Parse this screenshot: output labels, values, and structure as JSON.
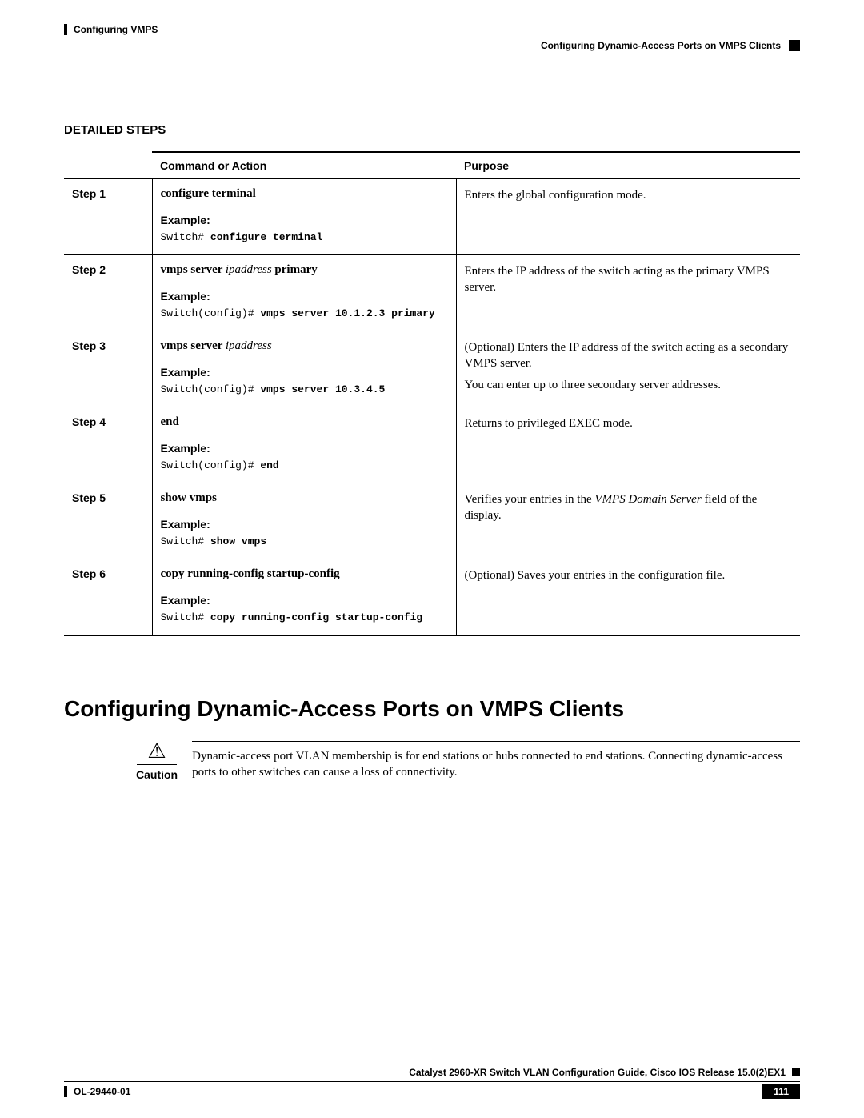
{
  "header": {
    "chapter_title": "Configuring VMPS",
    "sub_title": "Configuring Dynamic-Access Ports on VMPS Clients"
  },
  "section_heading": "DETAILED STEPS",
  "table": {
    "headers": {
      "cmd": "Command or Action",
      "purpose": "Purpose"
    },
    "example_label": "Example:",
    "steps": [
      {
        "step": "Step 1",
        "cmd_bold1": "configure terminal",
        "cmd_italic": "",
        "cmd_bold2": "",
        "code_prefix": "Switch# ",
        "code_bold": "configure terminal",
        "purpose_p1": "Enters the global configuration mode.",
        "purpose_p2": ""
      },
      {
        "step": "Step 2",
        "cmd_bold1": "vmps server ",
        "cmd_italic": "ipaddress",
        "cmd_bold2": " primary",
        "code_prefix": "Switch(config)# ",
        "code_bold": "vmps server 10.1.2.3 primary",
        "purpose_p1": "Enters the IP address of the switch acting as the primary VMPS server.",
        "purpose_p2": ""
      },
      {
        "step": "Step 3",
        "cmd_bold1": "vmps server ",
        "cmd_italic": "ipaddress",
        "cmd_bold2": "",
        "code_prefix": "Switch(config)# ",
        "code_bold": "vmps server 10.3.4.5",
        "purpose_p1": "(Optional) Enters the IP address of the switch acting as a secondary VMPS server.",
        "purpose_p2": "You can enter up to three secondary server addresses."
      },
      {
        "step": "Step 4",
        "cmd_bold1": "end",
        "cmd_italic": "",
        "cmd_bold2": "",
        "code_prefix": "Switch(config)# ",
        "code_bold": "end",
        "purpose_p1": "Returns to privileged EXEC mode.",
        "purpose_p2": ""
      },
      {
        "step": "Step 5",
        "cmd_bold1": "show vmps",
        "cmd_italic": "",
        "cmd_bold2": "",
        "code_prefix": "Switch# ",
        "code_bold": "show vmps",
        "purpose_p1_pre": "Verifies your entries in the ",
        "purpose_p1_italic": "VMPS Domain Server",
        "purpose_p1_post": " field of the display.",
        "purpose_p2": "",
        "has_italic_purpose": true
      },
      {
        "step": "Step 6",
        "cmd_bold1": "copy running-config startup-config",
        "cmd_italic": "",
        "cmd_bold2": "",
        "code_prefix": "Switch# ",
        "code_bold": "copy running-config startup-config",
        "purpose_p1": "(Optional) Saves your entries in the configuration file.",
        "purpose_p2": ""
      }
    ]
  },
  "big_heading": "Configuring Dynamic-Access Ports on VMPS Clients",
  "caution": {
    "icon": "⚠",
    "label": "Caution",
    "text": "Dynamic-access port VLAN membership is for end stations or hubs connected to end stations. Connecting dynamic-access ports to other switches can cause a loss of connectivity."
  },
  "footer": {
    "guide_title": "Catalyst 2960-XR Switch VLAN Configuration Guide, Cisco IOS Release 15.0(2)EX1",
    "doc_id": "OL-29440-01",
    "page_num": "111"
  }
}
